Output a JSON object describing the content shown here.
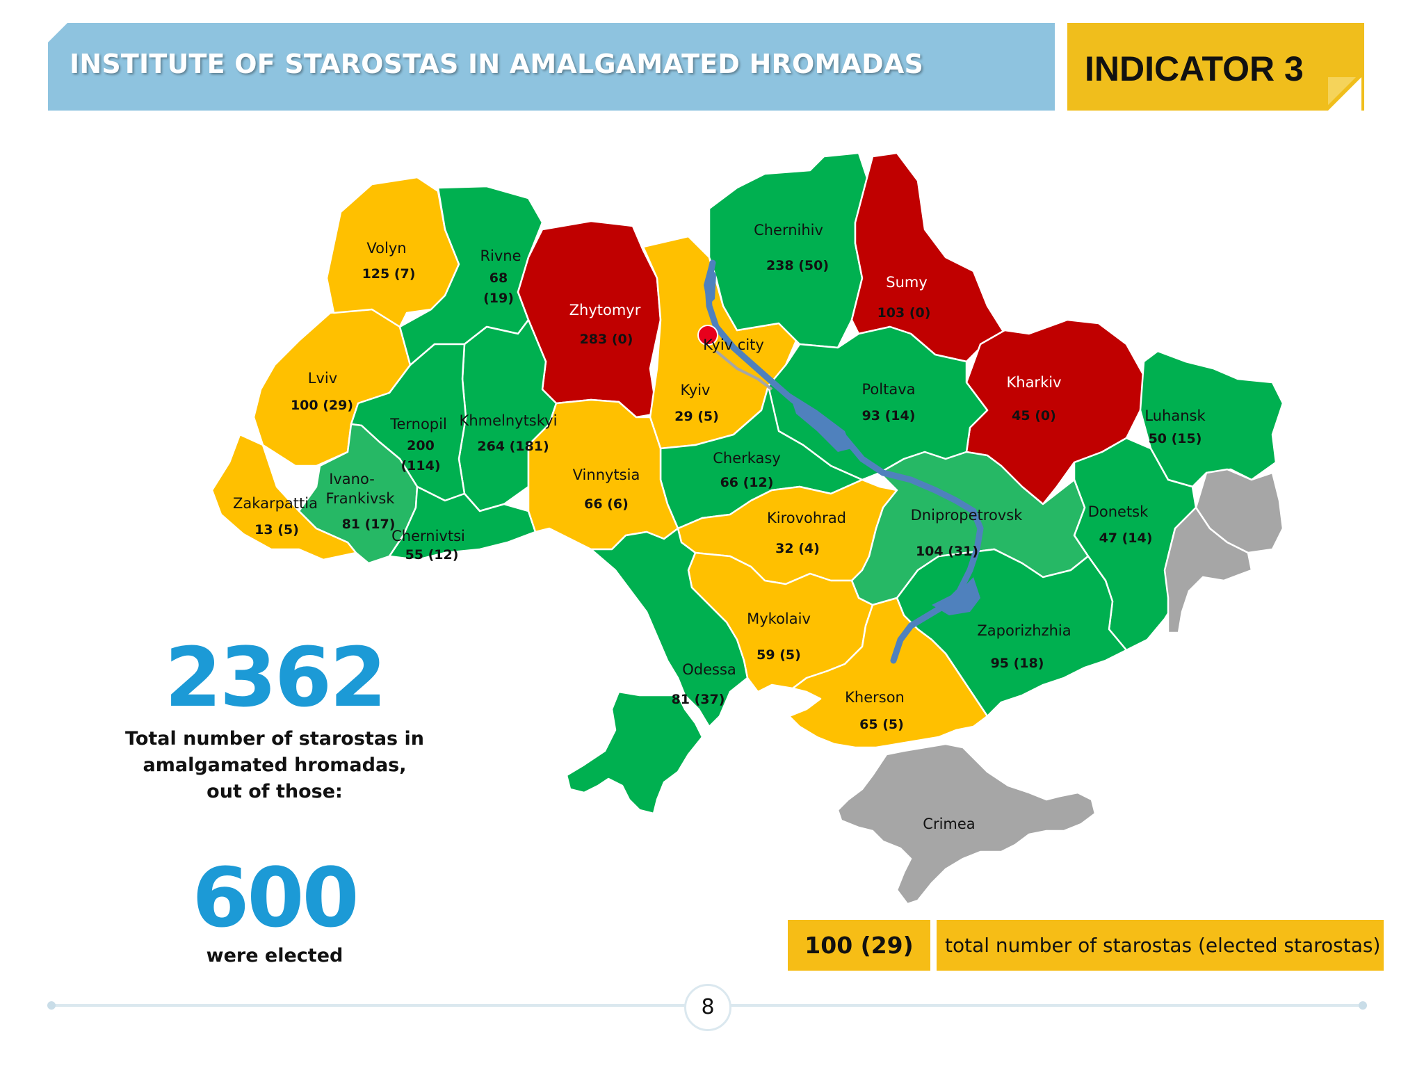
{
  "header": {
    "title": "INSTITUTE OF STAROSTAS IN AMALGAMATED HROMADAS",
    "indicator": "INDICATOR 3"
  },
  "colors": {
    "green": "#00b050",
    "light_green": "#26b865",
    "yellow": "#ffc000",
    "red": "#c00000",
    "grey": "#a6a6a6",
    "river": "#4f81bd",
    "accent_blue": "#1c9ad6"
  },
  "regions": {
    "volyn": {
      "name": "Volyn",
      "value": "125 (7)"
    },
    "rivne": {
      "name": "Rivne",
      "value_line1": "68",
      "value_line2": "(19)"
    },
    "zhytomyr": {
      "name": "Zhytomyr",
      "value": "283 (0)"
    },
    "kyiv_city": {
      "name": "Kyiv city"
    },
    "kyiv": {
      "name": "Kyiv",
      "value": "29 (5)"
    },
    "chernihiv": {
      "name": "Chernihiv",
      "value": "238 (50)"
    },
    "sumy": {
      "name": "Sumy",
      "value": "103 (0)"
    },
    "lviv": {
      "name": "Lviv",
      "value": "100 (29)"
    },
    "ternopil": {
      "name": "Ternopil",
      "value_line1": "200",
      "value_line2": "(114)"
    },
    "khmelnytskyi": {
      "name": "Khmelnytskyi",
      "value": "264 (181)"
    },
    "poltava": {
      "name": "Poltava",
      "value": "93 (14)"
    },
    "kharkiv": {
      "name": "Kharkiv",
      "value": "45 (0)"
    },
    "luhansk": {
      "name": "Luhansk",
      "value": "50 (15)"
    },
    "vinnytsia": {
      "name": "Vinnytsia",
      "value": "66 (6)"
    },
    "cherkasy": {
      "name": "Cherkasy",
      "value": "66 (12)"
    },
    "ivano_frankivsk": {
      "name_line1": "Ivano-",
      "name_line2": "Frankivsk",
      "value": "81 (17)"
    },
    "zakarpattia": {
      "name": "Zakarpattia",
      "value": "13 (5)"
    },
    "chernivtsi": {
      "name": "Chernivtsi",
      "value": "55 (12)"
    },
    "kirovohrad": {
      "name": "Kirovohrad",
      "value": "32 (4)"
    },
    "dnipropetrovsk": {
      "name": "Dnipropetrovsk",
      "value": "104 (31)"
    },
    "donetsk": {
      "name": "Donetsk",
      "value": "47 (14)"
    },
    "mykolaiv": {
      "name": "Mykolaiv",
      "value": "59 (5)"
    },
    "zaporizhzhia": {
      "name": "Zaporizhzhia",
      "value": "95 (18)"
    },
    "odessa": {
      "name": "Odessa",
      "value": "81 (37)"
    },
    "kherson": {
      "name": "Kherson",
      "value": "65 (5)"
    },
    "crimea": {
      "name": "Crimea"
    }
  },
  "summary": {
    "total_value": "2362",
    "total_caption_1": "Total number of starostas in",
    "total_caption_2": "amalgamated hromadas,",
    "total_caption_3": "out of those:",
    "elected_value": "600",
    "elected_caption": "were elected"
  },
  "legend": {
    "example_value": "100 (29)",
    "description": "total number of starostas (elected starostas)"
  },
  "footer": {
    "page_number": "8"
  }
}
